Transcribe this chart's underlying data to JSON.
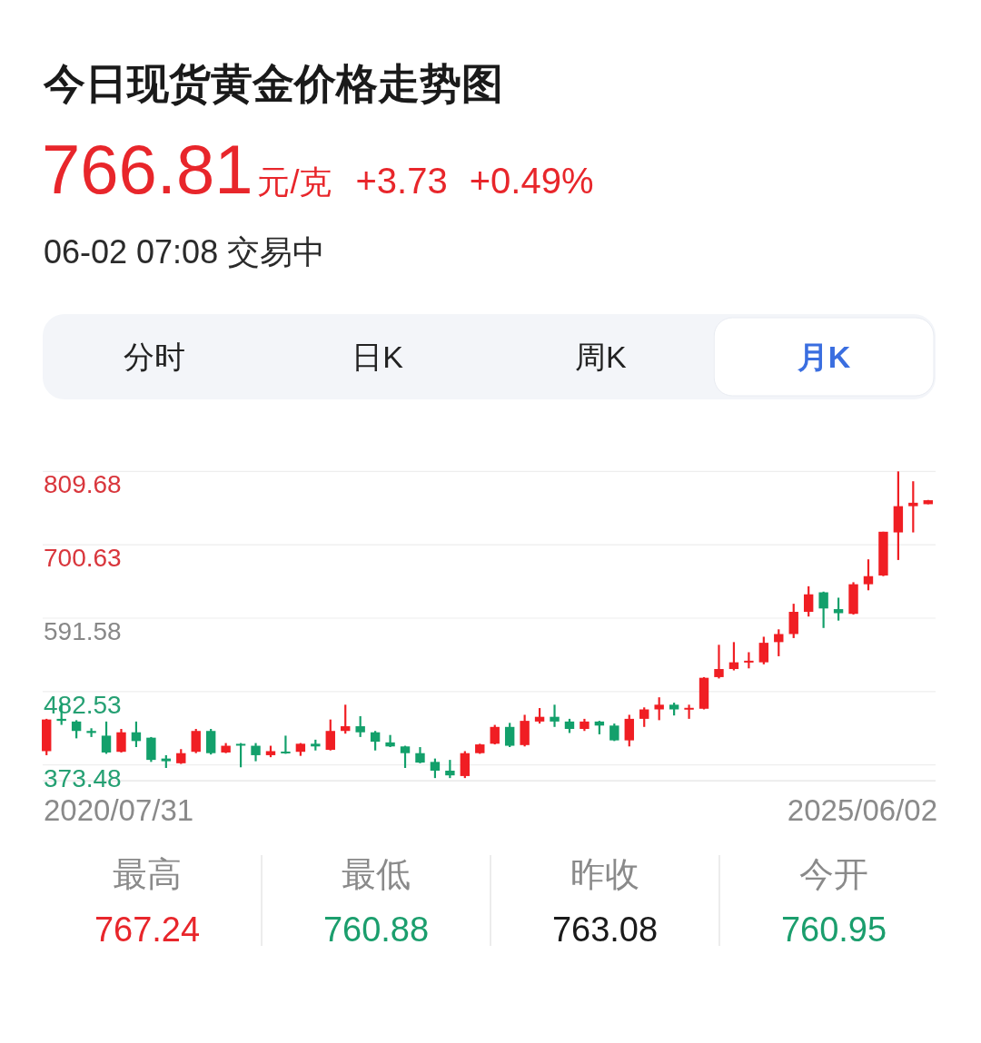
{
  "chart_data": {
    "type": "candlestick",
    "title": "今日现货黄金价格走势图",
    "subtitle": "06-02 07:08 交易中",
    "annotations": [
      "766.81",
      "元/克",
      "+3.73",
      "+0.49%",
      "分时",
      "日K",
      "周K",
      "月K",
      "最高",
      "767.24",
      "最低",
      "760.88",
      "昨收",
      "763.08",
      "今开",
      "760.95",
      "2020/07/31",
      "2025/06/02"
    ],
    "categories": [
      null,
      null,
      null,
      null,
      null,
      null,
      null,
      null,
      null,
      null,
      null,
      null,
      null,
      null,
      null,
      null,
      null,
      null,
      null,
      null,
      null,
      null,
      null,
      null,
      null,
      null,
      null,
      null,
      null,
      null,
      null,
      null,
      null,
      null,
      null,
      null,
      null,
      null,
      null,
      null,
      null,
      null,
      null,
      null,
      null,
      null,
      null,
      null,
      null,
      null,
      null,
      null,
      null,
      null,
      null,
      null,
      null,
      null,
      null,
      null
    ],
    "ohlc": [
      [
        394,
        442,
        388,
        441
      ],
      [
        442,
        465,
        433,
        439
      ],
      [
        438,
        440,
        413,
        424
      ],
      [
        424,
        428,
        415,
        421
      ],
      [
        417,
        438,
        390,
        392
      ],
      [
        393,
        427,
        392,
        422
      ],
      [
        422,
        438,
        400,
        409
      ],
      [
        414,
        415,
        378,
        381
      ],
      [
        383,
        388,
        369,
        379
      ],
      [
        376,
        397,
        375,
        391
      ],
      [
        393,
        427,
        391,
        424
      ],
      [
        424,
        427,
        389,
        391
      ],
      [
        392,
        406,
        391,
        402
      ],
      [
        404,
        406,
        370,
        403
      ],
      [
        402,
        406,
        379,
        388
      ],
      [
        388,
        402,
        385,
        394
      ],
      [
        393,
        417,
        390,
        391
      ],
      [
        393,
        406,
        387,
        405
      ],
      [
        405,
        411,
        395,
        401
      ],
      [
        396,
        441,
        395,
        424
      ],
      [
        424,
        463,
        420,
        431
      ],
      [
        431,
        446,
        415,
        422
      ],
      [
        422,
        424,
        395,
        408
      ],
      [
        407,
        418,
        400,
        401
      ],
      [
        401,
        402,
        369,
        391
      ],
      [
        391,
        400,
        376,
        377
      ],
      [
        378,
        383,
        354,
        365
      ],
      [
        365,
        381,
        354,
        358
      ],
      [
        357,
        394,
        354,
        391
      ],
      [
        391,
        405,
        390,
        404
      ],
      [
        405,
        433,
        404,
        430
      ],
      [
        430,
        436,
        400,
        402
      ],
      [
        403,
        448,
        401,
        439
      ],
      [
        438,
        458,
        435,
        445
      ],
      [
        445,
        463,
        430,
        438
      ],
      [
        438,
        442,
        421,
        427
      ],
      [
        427,
        442,
        424,
        438
      ],
      [
        438,
        439,
        419,
        432
      ],
      [
        432,
        435,
        409,
        410
      ],
      [
        410,
        448,
        401,
        442
      ],
      [
        442,
        459,
        430,
        456
      ],
      [
        456,
        474,
        440,
        463
      ],
      [
        463,
        466,
        447,
        456
      ],
      [
        456,
        463,
        442,
        458
      ],
      [
        457,
        504,
        456,
        503
      ],
      [
        504,
        552,
        502,
        516
      ],
      [
        516,
        556,
        514,
        526
      ],
      [
        526,
        541,
        517,
        528
      ],
      [
        526,
        564,
        523,
        555
      ],
      [
        556,
        575,
        535,
        568
      ],
      [
        568,
        613,
        562,
        601
      ],
      [
        601,
        639,
        594,
        627
      ],
      [
        630,
        631,
        577,
        606
      ],
      [
        605,
        622,
        588,
        599
      ],
      [
        598,
        645,
        597,
        642
      ],
      [
        642,
        679,
        633,
        654
      ],
      [
        655,
        720,
        654,
        720
      ],
      [
        719,
        809.68,
        678,
        758
      ],
      [
        758,
        795,
        719,
        763.08
      ],
      [
        760.95,
        767.24,
        760.88,
        766.81
      ]
    ],
    "colors": [
      "#f01e23",
      "#13a06b",
      "#13a06b",
      "#13a06b",
      "#13a06b",
      "#f01e23",
      "#13a06b",
      "#13a06b",
      "#13a06b",
      "#f01e23",
      "#f01e23",
      "#13a06b",
      "#f01e23",
      "#13a06b",
      "#13a06b",
      "#f01e23",
      "#13a06b",
      "#f01e23",
      "#13a06b",
      "#f01e23",
      "#f01e23",
      "#13a06b",
      "#13a06b",
      "#13a06b",
      "#13a06b",
      "#13a06b",
      "#13a06b",
      "#13a06b",
      "#f01e23",
      "#f01e23",
      "#f01e23",
      "#13a06b",
      "#f01e23",
      "#f01e23",
      "#13a06b",
      "#13a06b",
      "#f01e23",
      "#13a06b",
      "#13a06b",
      "#f01e23",
      "#f01e23",
      "#f01e23",
      "#13a06b",
      "#f01e23",
      "#f01e23",
      "#f01e23",
      "#f01e23",
      "#f01e23",
      "#f01e23",
      "#f01e23",
      "#f01e23",
      "#f01e23",
      "#13a06b",
      "#13a06b",
      "#f01e23",
      "#f01e23",
      "#f01e23",
      "#f01e23",
      "#f01e23",
      "#f01e23"
    ],
    "ylim": [
      350,
      809.68
    ],
    "yticks": [
      373.48,
      482.53,
      591.58,
      700.63,
      809.68
    ],
    "grid": "y"
  }
}
